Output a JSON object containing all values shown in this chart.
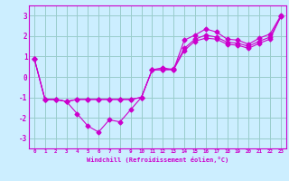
{
  "xlabel": "Windchill (Refroidissement éolien,°C)",
  "bg_color": "#cceeff",
  "line_color": "#cc00cc",
  "grid_color": "#99cccc",
  "x_values": [
    0,
    1,
    2,
    3,
    4,
    5,
    6,
    7,
    8,
    9,
    10,
    11,
    12,
    13,
    14,
    15,
    16,
    17,
    18,
    19,
    20,
    21,
    22,
    23
  ],
  "line1": [
    0.9,
    -1.1,
    -1.1,
    -1.2,
    -1.8,
    -2.4,
    -2.7,
    -2.1,
    -2.2,
    -1.6,
    -1.0,
    0.35,
    0.45,
    0.35,
    1.8,
    2.05,
    2.35,
    2.2,
    1.85,
    1.8,
    1.6,
    1.9,
    2.1,
    3.0
  ],
  "line2": [
    0.9,
    -1.1,
    -1.1,
    -1.2,
    -1.1,
    -1.1,
    -1.1,
    -1.1,
    -1.1,
    -1.1,
    -1.0,
    0.35,
    0.35,
    0.4,
    1.4,
    1.85,
    2.05,
    1.95,
    1.7,
    1.65,
    1.5,
    1.75,
    1.95,
    2.95
  ],
  "line3": [
    0.9,
    -1.1,
    -1.1,
    -1.2,
    -1.1,
    -1.1,
    -1.1,
    -1.1,
    -1.1,
    -1.1,
    -1.0,
    0.35,
    0.35,
    0.35,
    1.3,
    1.75,
    1.9,
    1.85,
    1.6,
    1.55,
    1.4,
    1.65,
    1.85,
    2.95
  ],
  "ylim": [
    -3.5,
    3.5
  ],
  "xlim": [
    -0.5,
    23.5
  ],
  "yticks": [
    -3,
    -2,
    -1,
    0,
    1,
    2,
    3
  ],
  "xticks": [
    0,
    1,
    2,
    3,
    4,
    5,
    6,
    7,
    8,
    9,
    10,
    11,
    12,
    13,
    14,
    15,
    16,
    17,
    18,
    19,
    20,
    21,
    22,
    23
  ]
}
